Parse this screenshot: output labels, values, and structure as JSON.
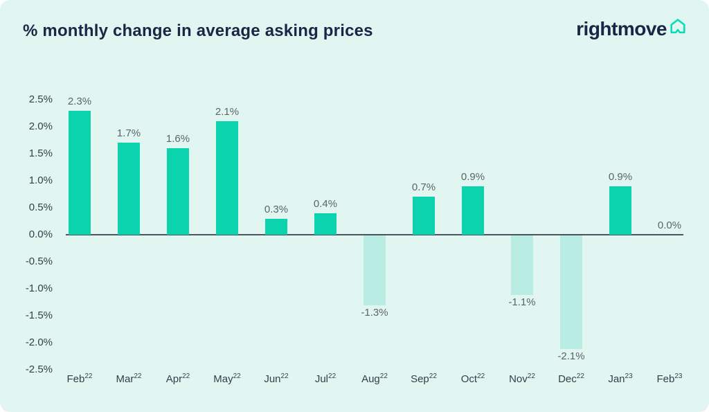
{
  "header": {
    "title": "% monthly change in average asking prices",
    "logo_text": "rightmove"
  },
  "chart_data": {
    "type": "bar",
    "title": "% monthly change in average asking prices",
    "xlabel": "",
    "ylabel": "",
    "ylim": [
      -2.5,
      2.5
    ],
    "grid": false,
    "legend": "none",
    "yticks": [
      {
        "value": 2.5,
        "label": "2.5%"
      },
      {
        "value": 2.0,
        "label": "2.0%"
      },
      {
        "value": 1.5,
        "label": "1.5%"
      },
      {
        "value": 1.0,
        "label": "1.0%"
      },
      {
        "value": 0.5,
        "label": "0.5%"
      },
      {
        "value": 0.0,
        "label": "0.0%"
      },
      {
        "value": -0.5,
        "label": "-0.5%"
      },
      {
        "value": -1.0,
        "label": "-1.0%"
      },
      {
        "value": -1.5,
        "label": "-1.5%"
      },
      {
        "value": -2.0,
        "label": "-2.0%"
      },
      {
        "value": -2.5,
        "label": "-2.5%"
      }
    ],
    "points": [
      {
        "month": "Feb",
        "year_sup": "22",
        "value": 2.3,
        "label": "2.3%"
      },
      {
        "month": "Mar",
        "year_sup": "22",
        "value": 1.7,
        "label": "1.7%"
      },
      {
        "month": "Apr",
        "year_sup": "22",
        "value": 1.6,
        "label": "1.6%"
      },
      {
        "month": "May",
        "year_sup": "22",
        "value": 2.1,
        "label": "2.1%"
      },
      {
        "month": "Jun",
        "year_sup": "22",
        "value": 0.3,
        "label": "0.3%"
      },
      {
        "month": "Jul",
        "year_sup": "22",
        "value": 0.4,
        "label": "0.4%"
      },
      {
        "month": "Aug",
        "year_sup": "22",
        "value": -1.3,
        "label": "-1.3%"
      },
      {
        "month": "Sep",
        "year_sup": "22",
        "value": 0.7,
        "label": "0.7%"
      },
      {
        "month": "Oct",
        "year_sup": "22",
        "value": 0.9,
        "label": "0.9%"
      },
      {
        "month": "Nov",
        "year_sup": "22",
        "value": -1.1,
        "label": "-1.1%"
      },
      {
        "month": "Dec",
        "year_sup": "22",
        "value": -2.1,
        "label": "-2.1%"
      },
      {
        "month": "Jan",
        "year_sup": "23",
        "value": 0.9,
        "label": "0.9%"
      },
      {
        "month": "Feb",
        "year_sup": "23",
        "value": 0.0,
        "label": "0.0%"
      }
    ],
    "colors": {
      "bar_positive": "#0bd3ae",
      "bar_negative": "#b9ece2",
      "axis_line": "#4b545e",
      "card_background": "#e2f6f1",
      "title_text": "#1b2647",
      "logo_teal": "#00deb6",
      "data_label": "#5a646b",
      "tick_label": "#323e4a"
    }
  }
}
